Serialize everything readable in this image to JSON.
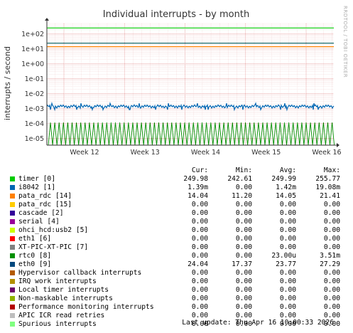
{
  "chart_data": {
    "type": "line",
    "title": "Individual interrupts - by month",
    "ylabel": "interrupts / second",
    "yscale": "log",
    "ylim": [
      3.5e-06,
      500
    ],
    "y_ticks": [
      "1e+02",
      "1e+01",
      "1e+00",
      "1e-01",
      "1e-02",
      "1e-03",
      "1e-04",
      "1e-05"
    ],
    "y_tick_values": [
      100,
      10,
      1,
      0.1,
      0.01,
      0.001,
      0.0001,
      1e-05
    ],
    "x_ticks": [
      "Week 12",
      "Week 13",
      "Week 14",
      "Week 15",
      "Week 16"
    ],
    "grid": true,
    "side_label": "RRDTOOL / TOBI OETIKER",
    "series": [
      {
        "name": "timer [0]",
        "color": "#00cc00",
        "approx": 250,
        "profile": "flat"
      },
      {
        "name": "eth0 [9]",
        "color": "#005c5c",
        "approx": 24,
        "profile": "flat"
      },
      {
        "name": "pata_rdc [14]",
        "color": "#ff8000",
        "approx": 14,
        "profile": "flat"
      },
      {
        "name": "i8042 [1]",
        "color": "#0066b3",
        "approx": 0.0014,
        "profile": "noisy"
      },
      {
        "name": "rtc0 [8]",
        "color": "#008f00",
        "approx": 2.3e-05,
        "profile": "spikes"
      }
    ]
  },
  "legend": {
    "headers": [
      "Cur:",
      "Min:",
      "Avg:",
      "Max:"
    ],
    "rows": [
      {
        "color": "#00cc00",
        "name": "timer [0]",
        "cur": "249.98",
        "min": "242.61",
        "avg": "249.99",
        "max": "255.77"
      },
      {
        "color": "#0066b3",
        "name": "i8042 [1]",
        "cur": "1.39m",
        "min": "0.00",
        "avg": "1.42m",
        "max": "19.08m"
      },
      {
        "color": "#ff8000",
        "name": "pata_rdc [14]",
        "cur": "14.04",
        "min": "11.20",
        "avg": "14.05",
        "max": "21.41"
      },
      {
        "color": "#ffcc00",
        "name": "pata_rdc [15]",
        "cur": "0.00",
        "min": "0.00",
        "avg": "0.00",
        "max": "0.00"
      },
      {
        "color": "#330099",
        "name": "cascade [2]",
        "cur": "0.00",
        "min": "0.00",
        "avg": "0.00",
        "max": "0.00"
      },
      {
        "color": "#990099",
        "name": "serial [4]",
        "cur": "0.00",
        "min": "0.00",
        "avg": "0.00",
        "max": "0.00"
      },
      {
        "color": "#ccff00",
        "name": "ohci_hcd:usb2 [5]",
        "cur": "0.00",
        "min": "0.00",
        "avg": "0.00",
        "max": "0.00"
      },
      {
        "color": "#ff0000",
        "name": "eth1 [6]",
        "cur": "0.00",
        "min": "0.00",
        "avg": "0.00",
        "max": "0.00"
      },
      {
        "color": "#808080",
        "name": "XT-PIC-XT-PIC [7]",
        "cur": "0.00",
        "min": "0.00",
        "avg": "0.00",
        "max": "0.00"
      },
      {
        "color": "#008f00",
        "name": "rtc0 [8]",
        "cur": "0.00",
        "min": "0.00",
        "avg": "23.00u",
        "max": "3.51m"
      },
      {
        "color": "#00487d",
        "name": "eth0 [9]",
        "cur": "24.04",
        "min": "17.37",
        "avg": "23.77",
        "max": "27.29"
      },
      {
        "color": "#b35a00",
        "name": "Hypervisor callback interrupts",
        "cur": "0.00",
        "min": "0.00",
        "avg": "0.00",
        "max": "0.00"
      },
      {
        "color": "#b38f00",
        "name": "IRQ work interrupts",
        "cur": "0.00",
        "min": "0.00",
        "avg": "0.00",
        "max": "0.00"
      },
      {
        "color": "#6b006b",
        "name": "Local timer interrupts",
        "cur": "0.00",
        "min": "0.00",
        "avg": "0.00",
        "max": "0.00"
      },
      {
        "color": "#8fb300",
        "name": "Non-maskable interrupts",
        "cur": "0.00",
        "min": "0.00",
        "avg": "0.00",
        "max": "0.00"
      },
      {
        "color": "#b30000",
        "name": "Performance monitoring interrupts",
        "cur": "0.00",
        "min": "0.00",
        "avg": "0.00",
        "max": "0.00"
      },
      {
        "color": "#bebebe",
        "name": "APIC ICR read retries",
        "cur": "0.00",
        "min": "0.00",
        "avg": "0.00",
        "max": "0.00"
      },
      {
        "color": "#80ff80",
        "name": "Spurious interrupts",
        "cur": "0.00",
        "min": "0.00",
        "avg": "0.00",
        "max": "0.00"
      }
    ]
  },
  "footer": {
    "last_update": "Last update: Thu Apr 16 10:00:33 2026"
  }
}
